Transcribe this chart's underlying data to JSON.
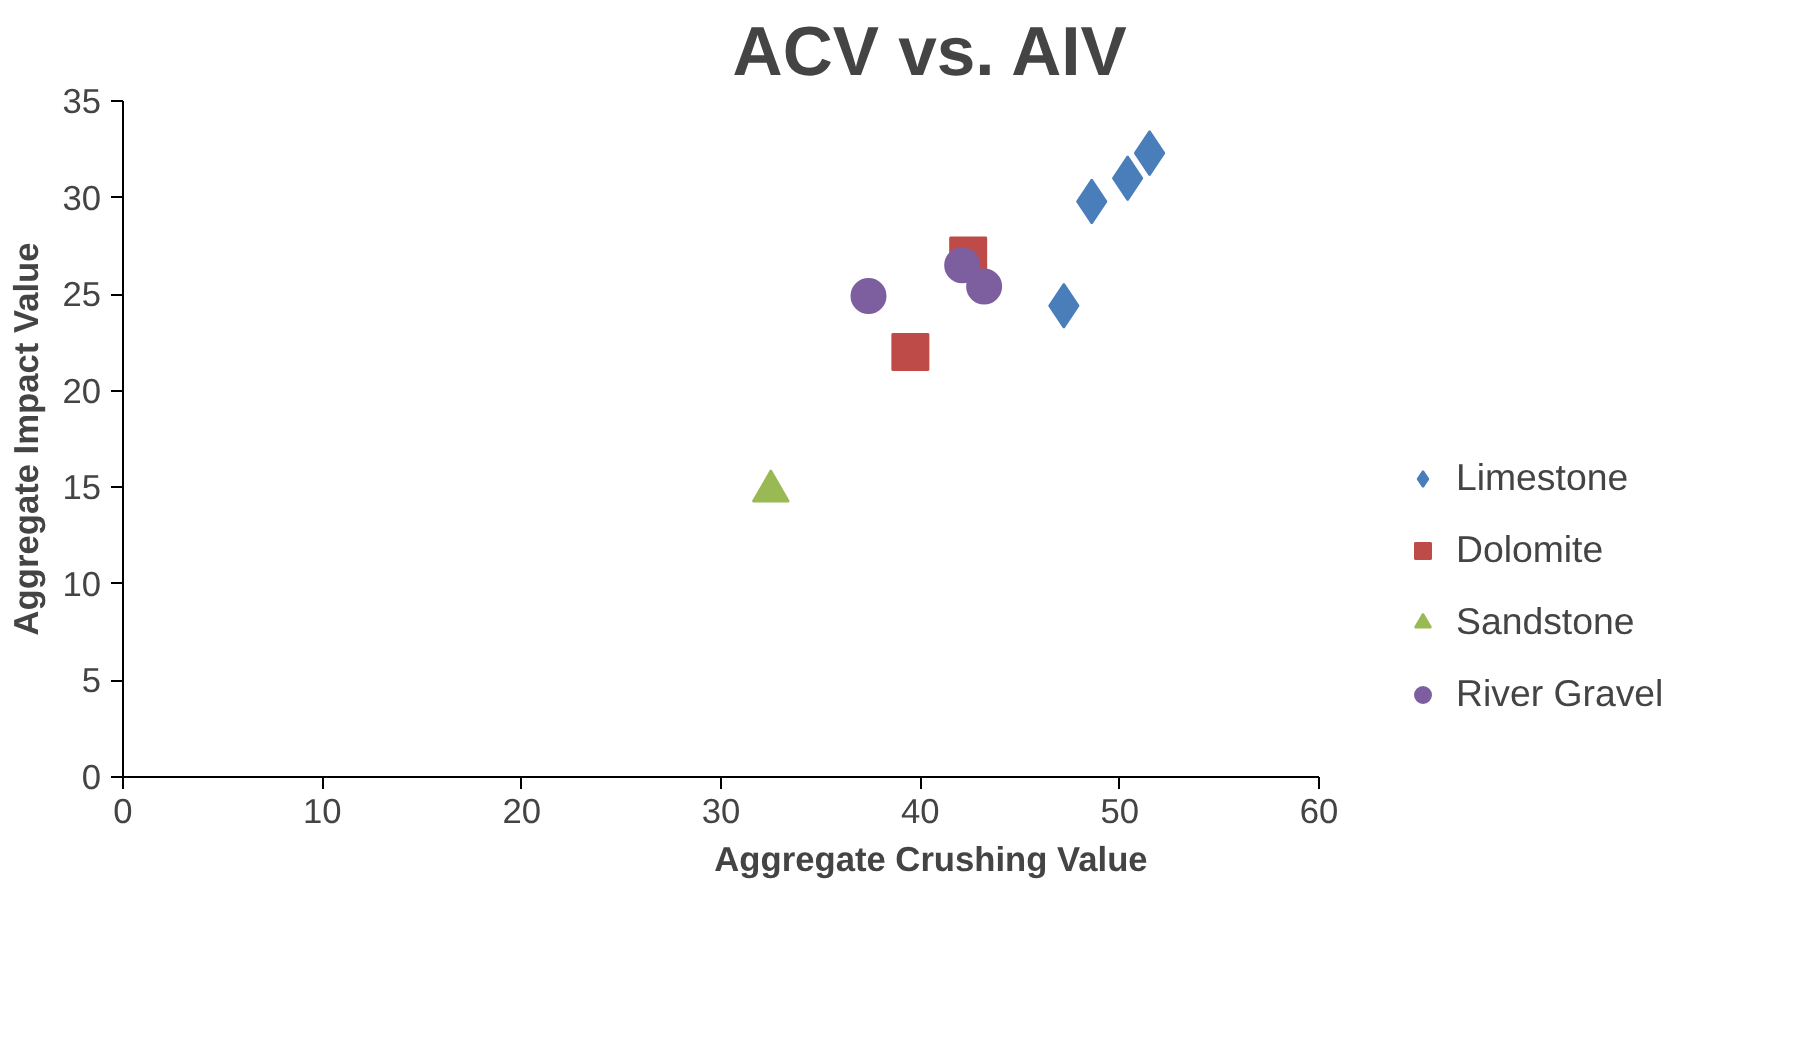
{
  "chart_data": {
    "type": "scatter",
    "title": "ACV vs. AIV",
    "xlabel": "Aggregate Crushing Value",
    "ylabel": "Aggregate Impact Value",
    "xlim": [
      0,
      60
    ],
    "xticks": [
      0,
      10,
      20,
      30,
      40,
      50,
      60
    ],
    "ylim": [
      0,
      35
    ],
    "yticks": [
      0,
      5,
      10,
      15,
      20,
      25,
      30,
      35
    ],
    "grid": false,
    "legend": "right",
    "series": [
      {
        "name": "Limestone",
        "color": "#4a7ebb",
        "marker": "diamond",
        "x": [
          47.2,
          48.6,
          50.4,
          51.5
        ],
        "values": [
          24.4,
          29.8,
          31.0,
          32.3
        ]
      },
      {
        "name": "Dolomite",
        "color": "#be4b48",
        "marker": "square",
        "x": [
          42.4,
          39.5
        ],
        "values": [
          27.0,
          22.0
        ]
      },
      {
        "name": "Sandstone",
        "color": "#98b954",
        "marker": "triangle",
        "x": [
          32.5
        ],
        "values": [
          14.8
        ]
      },
      {
        "name": "River Gravel",
        "color": "#7d5fa0",
        "marker": "circle",
        "x": [
          37.4,
          42.1,
          43.2
        ],
        "values": [
          24.9,
          26.5,
          25.4
        ]
      }
    ]
  }
}
